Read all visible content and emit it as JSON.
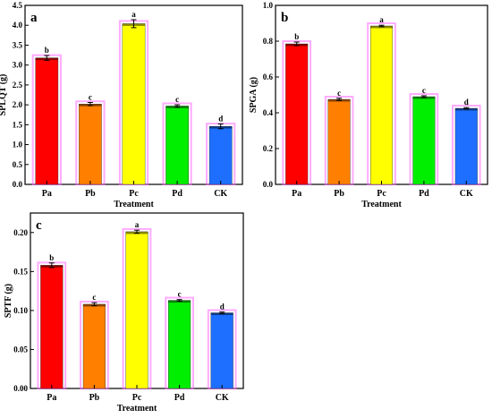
{
  "chart_data": [
    {
      "panel": "a",
      "type": "bar",
      "xlabel": "Treatment",
      "ylabel": "SPLQT (g)",
      "ylim": [
        0,
        4.5
      ],
      "yticks": [
        "0.0",
        "0.5",
        "1.0",
        "1.5",
        "2.0",
        "2.5",
        "3.0",
        "3.5",
        "4.0",
        "4.5"
      ],
      "categories": [
        "Pa",
        "Pb",
        "Pc",
        "Pd",
        "CK"
      ],
      "values": [
        3.18,
        2.02,
        4.04,
        1.97,
        1.46
      ],
      "errors": [
        0.06,
        0.04,
        0.1,
        0.03,
        0.06
      ],
      "letters": [
        "b",
        "c",
        "a",
        "c",
        "d"
      ]
    },
    {
      "panel": "b",
      "type": "bar",
      "xlabel": "Treatment",
      "ylabel": "SPGA (g)",
      "ylim": [
        0,
        1.0
      ],
      "yticks": [
        "0.0",
        "0.2",
        "0.4",
        "0.6",
        "0.8",
        "1.0"
      ],
      "categories": [
        "Pa",
        "Pb",
        "Pc",
        "Pd",
        "CK"
      ],
      "values": [
        0.785,
        0.475,
        0.885,
        0.49,
        0.425
      ],
      "errors": [
        0.01,
        0.006,
        0.004,
        0.005,
        0.004
      ],
      "letters": [
        "b",
        "c",
        "a",
        "c",
        "d"
      ]
    },
    {
      "panel": "c",
      "type": "bar",
      "xlabel": "Treatment",
      "ylabel": "SPTF (g)",
      "ylim": [
        0,
        0.225
      ],
      "yticks": [
        "0.00",
        "0.05",
        "0.10",
        "0.15",
        "0.20"
      ],
      "categories": [
        "Pa",
        "Pb",
        "Pc",
        "Pd",
        "CK"
      ],
      "values": [
        0.158,
        0.108,
        0.201,
        0.113,
        0.097
      ],
      "errors": [
        0.003,
        0.002,
        0.002,
        0.001,
        0.001
      ],
      "letters": [
        "b",
        "c",
        "a",
        "c",
        "d"
      ]
    }
  ],
  "colors": [
    "#ff0000",
    "#ff7f00",
    "#ffff00",
    "#00ee00",
    "#1e6fff"
  ],
  "highlight": "#ff66ff"
}
